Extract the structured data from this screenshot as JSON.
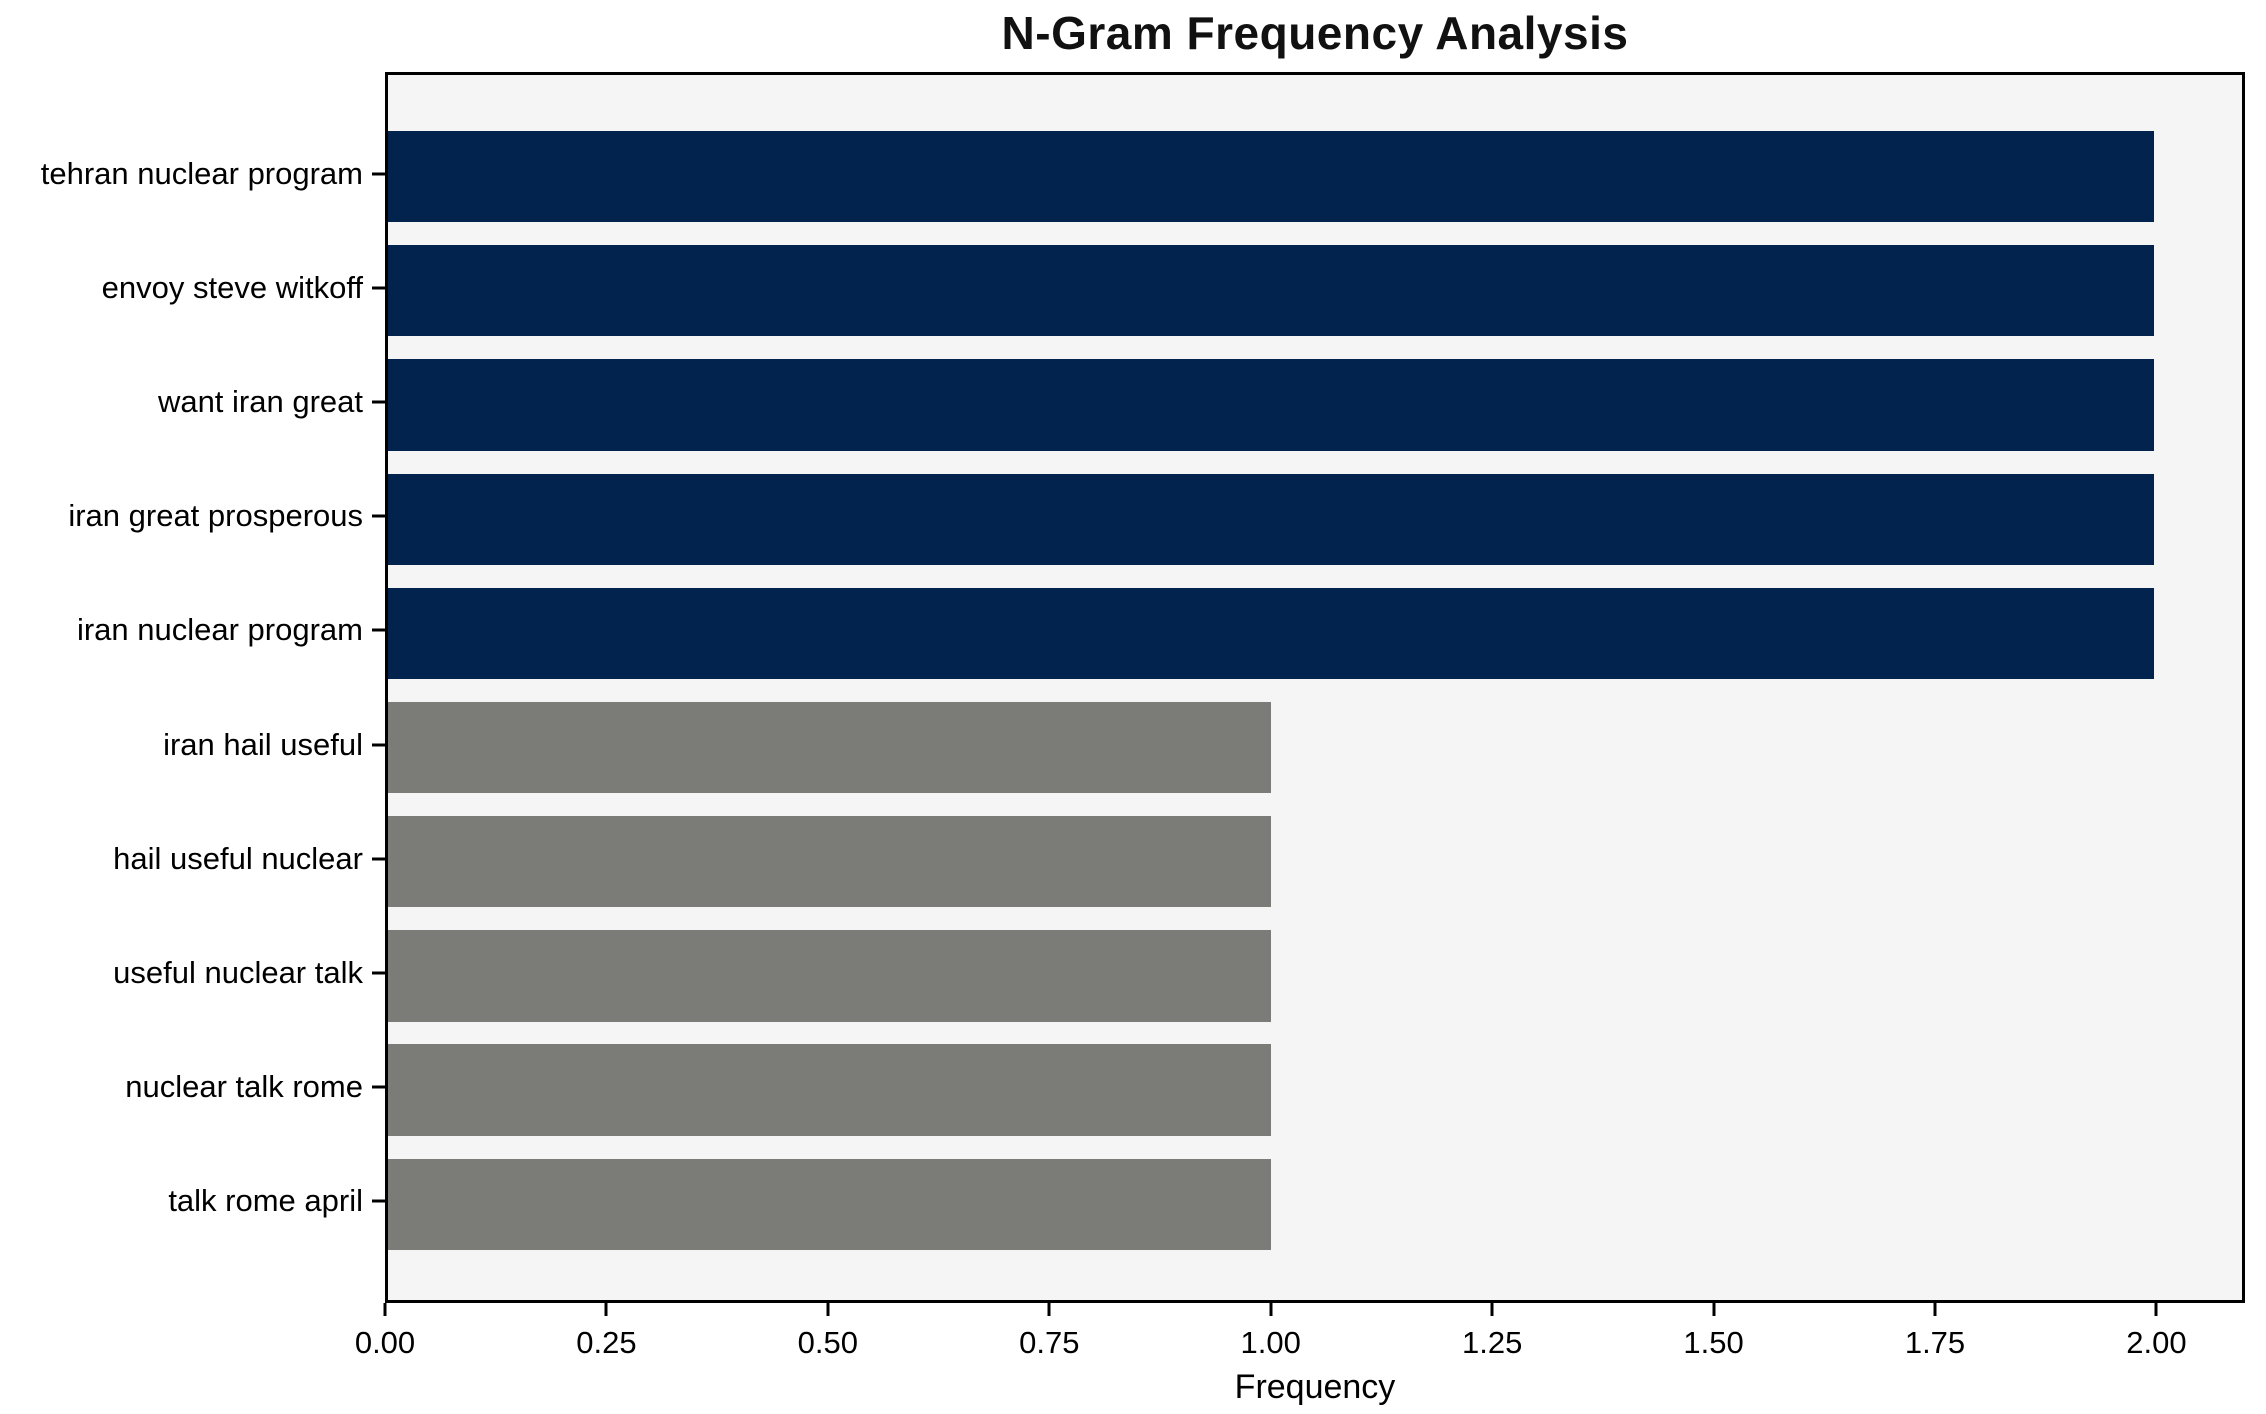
{
  "title": "N-Gram Frequency Analysis",
  "xlabel": "Frequency",
  "colors": {
    "bar_high": "#02234e",
    "bar_low": "#7b7b78",
    "plot_background": "#f5f5f5",
    "spine": "#000000"
  },
  "chart_data": {
    "type": "bar",
    "orientation": "horizontal",
    "title": "N-Gram Frequency Analysis",
    "xlabel": "Frequency",
    "ylabel": "",
    "categories": [
      "tehran nuclear program",
      "envoy steve witkoff",
      "want iran great",
      "iran great prosperous",
      "iran nuclear program",
      "iran hail useful",
      "hail useful nuclear",
      "useful nuclear talk",
      "nuclear talk rome",
      "talk rome april"
    ],
    "values": [
      2,
      2,
      2,
      2,
      2,
      1,
      1,
      1,
      1,
      1
    ],
    "bar_colors": [
      "#02234e",
      "#02234e",
      "#02234e",
      "#02234e",
      "#02234e",
      "#7b7b78",
      "#7b7b78",
      "#7b7b78",
      "#7b7b78",
      "#7b7b78"
    ],
    "xlim": [
      0,
      2.1
    ],
    "xticks": [
      0,
      0.25,
      0.5,
      0.75,
      1.0,
      1.25,
      1.5,
      1.75,
      2.0
    ],
    "xtick_labels": [
      "0.00",
      "0.25",
      "0.50",
      "0.75",
      "1.00",
      "1.25",
      "1.50",
      "1.75",
      "2.00"
    ],
    "grid": false,
    "legend": "none"
  }
}
